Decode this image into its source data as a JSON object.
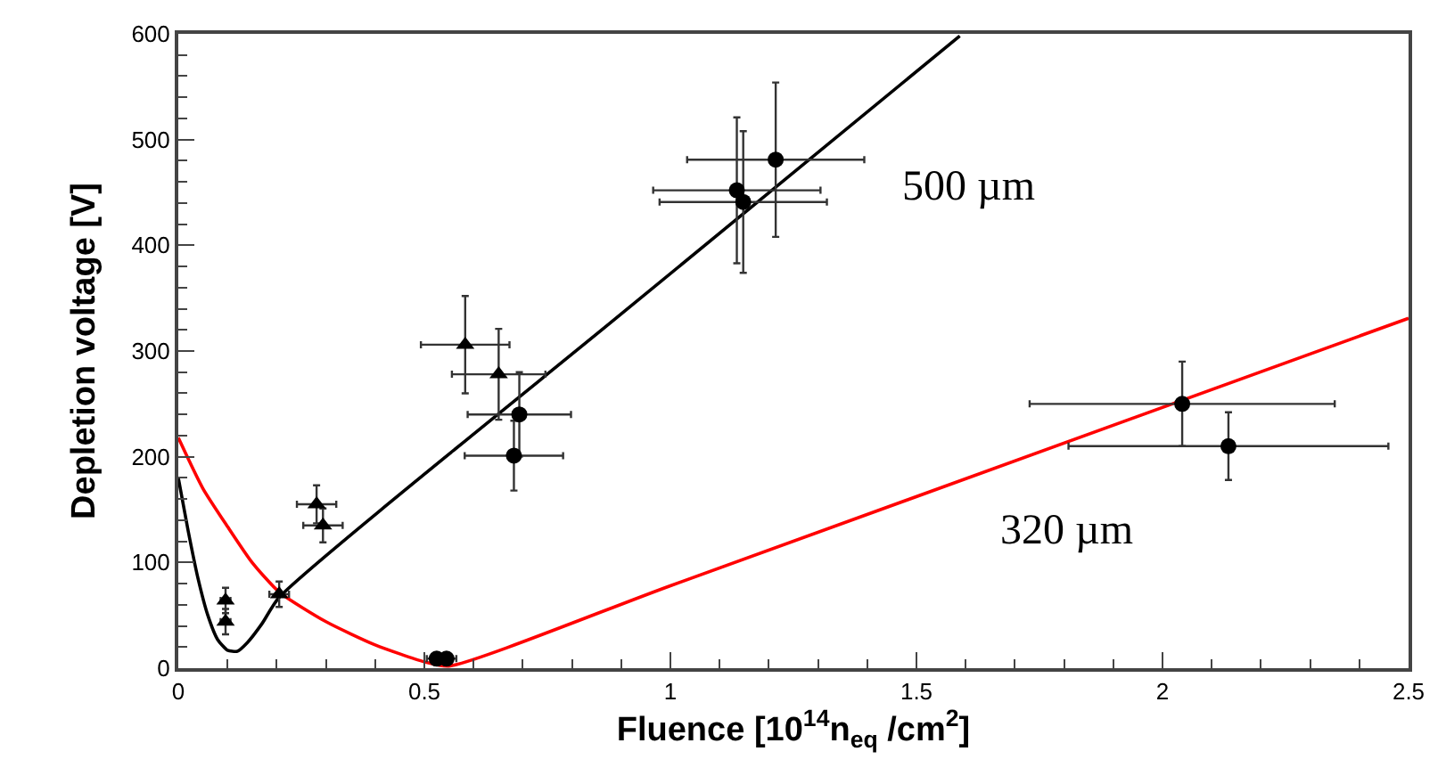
{
  "chart_data": {
    "type": "scatter",
    "xlabel": "Fluence [10$^{14}$n$_{eq}$ /cm$^{2}$]",
    "ylabel": "Depletion voltage [V]",
    "xlim": [
      0,
      2.5
    ],
    "ylim": [
      0,
      600
    ],
    "xticks": [
      0,
      0.5,
      1,
      1.5,
      2,
      2.5
    ],
    "yticks": [
      0,
      100,
      200,
      300,
      400,
      500,
      600
    ],
    "series": [
      {
        "marker": "triangle",
        "color": "#000000",
        "x": [
          0.096,
          0.096,
          0.205,
          0.281,
          0.294,
          0.583,
          0.651
        ],
        "values": [
          64,
          44,
          70,
          155,
          135,
          306,
          278
        ],
        "errors": [
          12,
          12,
          12,
          18,
          16,
          46,
          43
        ],
        "xerrors": [
          0.01,
          0.01,
          0.02,
          0.04,
          0.04,
          0.09,
          0.095
        ]
      },
      {
        "marker": "circle",
        "color": "#000000",
        "x": [
          0.525,
          0.545,
          0.682,
          0.693,
          1.135,
          1.148,
          1.214,
          2.04,
          2.134
        ],
        "values": [
          9,
          9,
          201,
          240,
          452,
          441,
          481,
          250,
          210
        ],
        "errors": [
          4,
          4,
          33,
          40,
          69,
          67,
          73,
          40,
          32
        ],
        "xerrors": [
          0.02,
          0.02,
          0.1,
          0.105,
          0.17,
          0.17,
          0.18,
          0.31,
          0.325
        ]
      },
      {
        "type": "line",
        "marker": "none",
        "line_style": "solid",
        "color": "#000000",
        "x": [
          0,
          0.02,
          0.04,
          0.06,
          0.08,
          0.1,
          0.12,
          0.14,
          0.17,
          0.205,
          0.9,
          1.588
        ],
        "values": [
          180,
          130,
          85,
          50,
          27,
          17,
          16,
          24,
          42,
          67,
          335,
          598
        ]
      },
      {
        "type": "line",
        "marker": "none",
        "line_style": "solid",
        "color": "#ff0000",
        "x": [
          0,
          0.05,
          0.1,
          0.15,
          0.205,
          0.3,
          0.4,
          0.5,
          0.55,
          1,
          2.5
        ],
        "values": [
          218,
          170,
          134,
          100,
          72,
          44,
          22,
          6,
          2,
          78,
          331
        ]
      }
    ],
    "annotations": [
      "500 µm",
      "320 µm"
    ]
  }
}
